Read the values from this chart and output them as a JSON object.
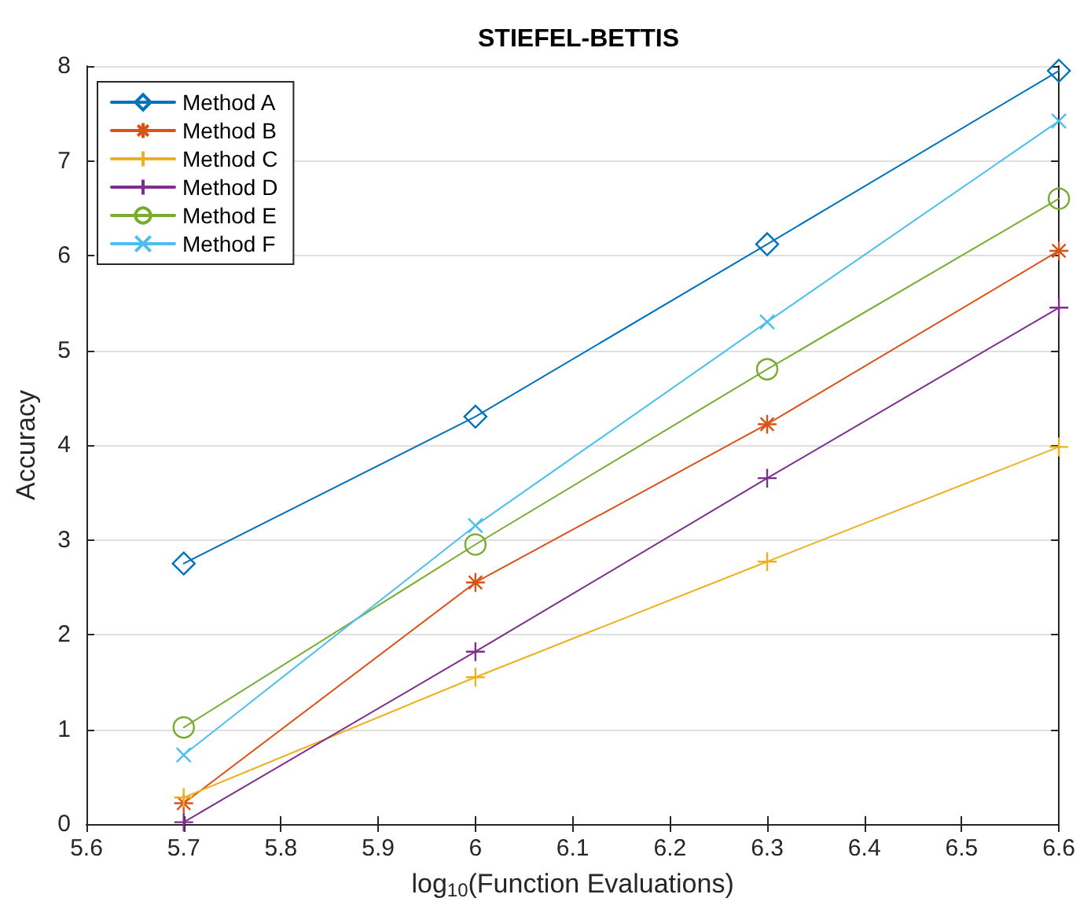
{
  "chart_data": {
    "type": "line",
    "title": "STIEFEL-BETTIS",
    "xlabel": "log$_{10}$(Function Evaluations)",
    "ylabel": "Accuracy",
    "x": [
      5.7,
      6,
      6.3,
      6.6
    ],
    "series": [
      {
        "name": "Method A",
        "color": "#0072bd",
        "marker": "diamond",
        "values": [
          2.75,
          4.3,
          6.12,
          7.95
        ]
      },
      {
        "name": "Method B",
        "color": "#d95319",
        "marker": "cross",
        "values": [
          0.22,
          2.55,
          4.22,
          6.05
        ]
      },
      {
        "name": "Method C",
        "color": "#edb120",
        "marker": "plus",
        "values": [
          0.28,
          1.55,
          2.77,
          3.98
        ]
      },
      {
        "name": "Method D",
        "color": "#7e2f8e",
        "marker": "plus",
        "values": [
          0.02,
          1.82,
          3.65,
          5.45
        ]
      },
      {
        "name": "Method E",
        "color": "#77ac30",
        "marker": "circle",
        "values": [
          1.02,
          2.95,
          4.8,
          6.6
        ]
      },
      {
        "name": "Method F",
        "color": "#4dbeee",
        "marker": "x",
        "values": [
          0.73,
          3.15,
          5.3,
          7.42
        ]
      }
    ],
    "xlim": [
      5.6,
      6.6
    ],
    "xticks": [
      5.6,
      5.7,
      5.8,
      5.9,
      6,
      6.1,
      6.2,
      6.3,
      6.4,
      6.5,
      6.6
    ],
    "ylim": [
      0,
      8
    ],
    "yticks": [
      0,
      1,
      2,
      3,
      4,
      5,
      6,
      7,
      8
    ],
    "grid": "y",
    "legend": "top left",
    "line_style": "solid"
  }
}
